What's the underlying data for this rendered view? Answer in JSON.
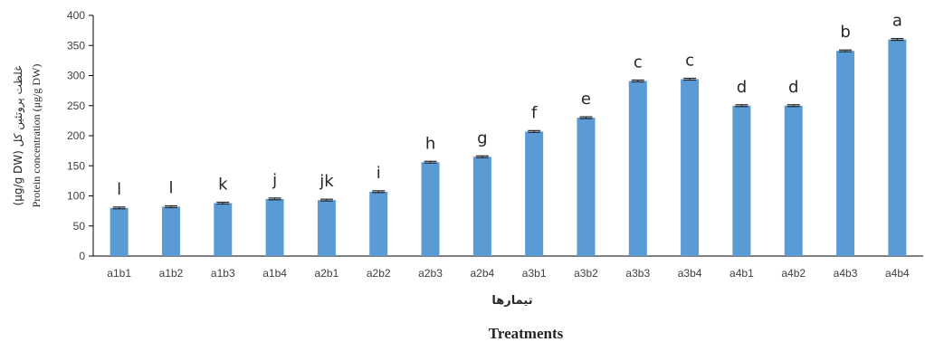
{
  "chart_data": {
    "type": "bar",
    "categories": [
      "a1b1",
      "a1b2",
      "a1b3",
      "a1b4",
      "a2b1",
      "a2b2",
      "a2b3",
      "a2b4",
      "a3b1",
      "a3b2",
      "a3b3",
      "a3b4",
      "a4b1",
      "a4b2",
      "a4b3",
      "a4b4"
    ],
    "values": [
      80,
      82,
      88,
      95,
      93,
      107,
      156,
      165,
      207,
      230,
      291,
      294,
      250,
      250,
      341,
      360
    ],
    "error": [
      1.5,
      1.5,
      1.5,
      1.5,
      1.5,
      1.5,
      1.5,
      1.5,
      1.5,
      1.5,
      1.5,
      1.5,
      1.5,
      1.5,
      1.5,
      1.5
    ],
    "letters": [
      "l",
      "l",
      "k",
      "j",
      "jk",
      "i",
      "h",
      "g",
      "f",
      "e",
      "c",
      "c",
      "d",
      "d",
      "b",
      "a"
    ],
    "ylim": [
      0,
      400
    ],
    "yticks": [
      0,
      50,
      100,
      150,
      200,
      250,
      300,
      350,
      400
    ],
    "xlabel_fa": "تیمارها",
    "xlabel_en": "Treatments",
    "ylabel_fa": "غلظت پروتئین کل (μg/g DW)",
    "ylabel_en": "Protein concentration (μg/g DW)",
    "grid": false,
    "legend": "none",
    "bar_color": "#5b9bd5"
  }
}
